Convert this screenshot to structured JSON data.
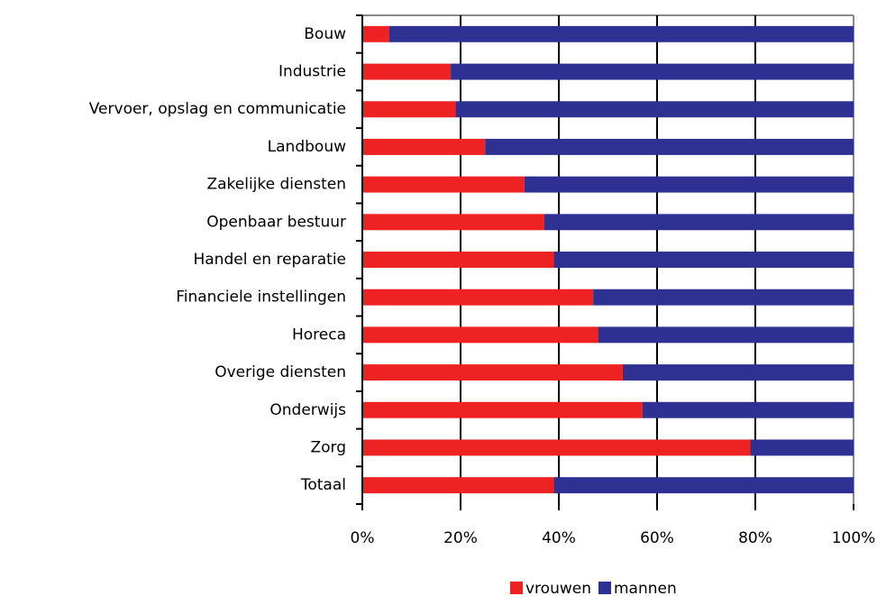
{
  "chart_data": {
    "type": "bar",
    "orientation": "horizontal",
    "stacked": true,
    "categories": [
      "Bouw",
      "Industrie",
      "Vervoer, opslag en communicatie",
      "Landbouw",
      "Zakelijke diensten",
      "Openbaar bestuur",
      "Handel en reparatie",
      "Financiele instellingen",
      "Horeca",
      "Overige diensten",
      "Onderwijs",
      "Zorg",
      "Totaal"
    ],
    "series": [
      {
        "name": "vrouwen",
        "color": "#ee2222",
        "values": [
          5.5,
          18,
          19,
          25,
          33,
          37,
          39,
          47,
          48,
          53,
          57,
          79,
          39
        ]
      },
      {
        "name": "mannen",
        "color": "#2e3192",
        "values": [
          94.5,
          82,
          81,
          75,
          67,
          63,
          61,
          53,
          52,
          47,
          43,
          21,
          61
        ]
      }
    ],
    "xlim": [
      0,
      100
    ],
    "xticks": [
      {
        "value": 0,
        "label": "0%"
      },
      {
        "value": 20,
        "label": "20%"
      },
      {
        "value": 40,
        "label": "40%"
      },
      {
        "value": 60,
        "label": "60%"
      },
      {
        "value": 80,
        "label": "80%"
      },
      {
        "value": 100,
        "label": "100%"
      }
    ],
    "grid": true
  }
}
